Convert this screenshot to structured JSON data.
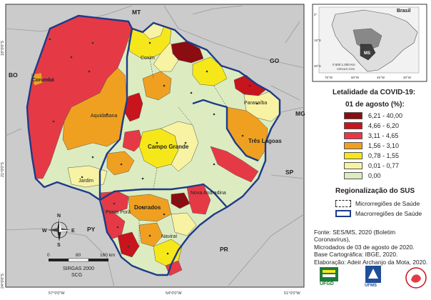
{
  "map": {
    "labels": {
      "top_state": "MT",
      "left_country": "BO",
      "right_state_go": "GO",
      "right_state_mg": "MG",
      "right_state_sp": "SP",
      "bottom_state": "PR",
      "left_country_py": "PY"
    },
    "cities": {
      "corumba": "Corumbá",
      "coxim": "Coxim",
      "aquidauana": "Aquidauana",
      "campo_grande": "Campo Grande",
      "paranaiba": "Paranaíba",
      "tres_lagoas": "Três Lagoas",
      "jardim": "Jardim",
      "nova_andradina": "Nova Andradina",
      "ponta_pora": "Ponta Porã",
      "dourados": "Dourados",
      "navirai": "Naviraí"
    },
    "lat_ticks": [
      "18°0'0\"S",
      "21°0'0\"S",
      "24°0'0\"S"
    ],
    "lon_ticks": [
      "57°0'0\"W",
      "54°0'0\"W",
      "51°0'0\"W"
    ],
    "compass": {
      "north": "N",
      "south": "S",
      "east": "E",
      "west": "W"
    },
    "scale": {
      "ticks": [
        "0",
        "80",
        "160 km"
      ],
      "datum": "SIRGAS 2000",
      "crs": "SCG"
    }
  },
  "inset": {
    "title": "Brasil",
    "state_label": "MS",
    "scale": "0  500 1.000 Km",
    "datum": "SIRGAS 2000",
    "lat_ticks": [
      "0°",
      "15°S",
      "30°S"
    ],
    "lon_ticks": [
      "75°W",
      "60°W",
      "45°W",
      "30°W"
    ]
  },
  "legend": {
    "title": "Letalidade da COVID-19:",
    "subtitle": "01 de agosto (%):",
    "classes": [
      {
        "label": "6,21 - 40,00",
        "color": "#8b0d12"
      },
      {
        "label": "4,66 - 6,20",
        "color": "#c8141c"
      },
      {
        "label": "3,11 - 4,65",
        "color": "#e63946"
      },
      {
        "label": "1,56 - 3,10",
        "color": "#f0a020"
      },
      {
        "label": "0,78 - 1,55",
        "color": "#f6e71a"
      },
      {
        "label": "0,01 - 0,77",
        "color": "#f7f3a2"
      },
      {
        "label": "0,00",
        "color": "#dcecc0"
      }
    ]
  },
  "regionalizacao": {
    "title": "Regionalização do SUS",
    "micro": "Microrregiões de Saúde",
    "macro": "Macrorregiões de Saúde"
  },
  "sources": {
    "line1": "Fonte: SES/MS, 2020 (Boletim Coronavírus),",
    "line2": "Microdados de 03 de agosto de 2020.",
    "line3": "Base Cartográfica: IBGE, 2020.",
    "line4": "Elaboração: Adeir Archanjo da Mota, 2020."
  },
  "logos": {
    "ufgd": "UFGD",
    "ufms": "UFMS"
  },
  "colors": {
    "neighbor": "#c8c8c8",
    "macro_border": "#1e3a8a",
    "accent_logo": "#1f7a3a"
  }
}
